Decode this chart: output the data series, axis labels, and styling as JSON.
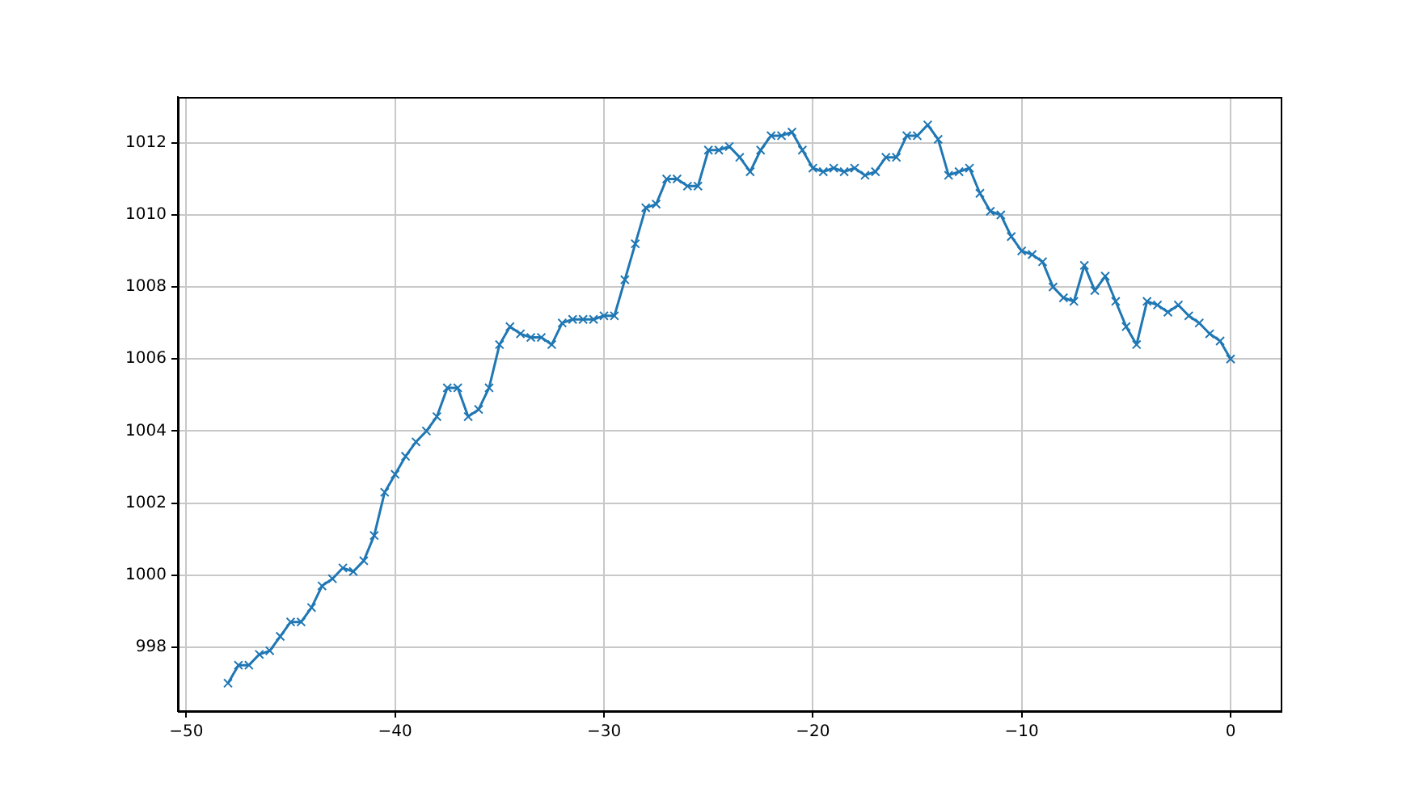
{
  "chart_data": {
    "type": "line",
    "x": [
      -48,
      -47.5,
      -47,
      -46.5,
      -46,
      -45.5,
      -45,
      -44.5,
      -44,
      -43.5,
      -43,
      -42.5,
      -42,
      -41.5,
      -41,
      -40.5,
      -40,
      -39.5,
      -39,
      -38.5,
      -38,
      -37.5,
      -37,
      -36.5,
      -36,
      -35.5,
      -35,
      -34.5,
      -34,
      -33.5,
      -33,
      -32.5,
      -32,
      -31.5,
      -31,
      -30.5,
      -30,
      -29.5,
      -29,
      -28.5,
      -28,
      -27.5,
      -27,
      -26.5,
      -26,
      -25.5,
      -25,
      -24.5,
      -24,
      -23.5,
      -23,
      -22.5,
      -22,
      -21.5,
      -21,
      -20.5,
      -20,
      -19.5,
      -19,
      -18.5,
      -18,
      -17.5,
      -17,
      -16.5,
      -16,
      -15.5,
      -15,
      -14.5,
      -14,
      -13.5,
      -13,
      -12.5,
      -12,
      -11.5,
      -11,
      -10.5,
      -10,
      -9.5,
      -9,
      -8.5,
      -8,
      -7.5,
      -7,
      -6.5,
      -6,
      -5.5,
      -5,
      -4.5,
      -4,
      -3.5,
      -3,
      -2.5,
      -2,
      -1.5,
      -1,
      -0.5,
      0
    ],
    "series": [
      {
        "color": "#1f77b4",
        "values": [
          997.0,
          997.5,
          997.5,
          997.8,
          997.9,
          998.3,
          998.7,
          998.7,
          999.1,
          999.7,
          999.9,
          1000.2,
          1000.1,
          1000.4,
          1001.1,
          1002.3,
          1002.8,
          1003.3,
          1003.7,
          1004.0,
          1004.4,
          1005.2,
          1005.2,
          1004.4,
          1004.6,
          1005.2,
          1006.4,
          1006.9,
          1006.7,
          1006.6,
          1006.6,
          1006.4,
          1007.0,
          1007.1,
          1007.1,
          1007.1,
          1007.2,
          1007.2,
          1008.2,
          1009.2,
          1010.2,
          1010.3,
          1011.0,
          1011.0,
          1010.8,
          1010.8,
          1011.8,
          1011.8,
          1011.9,
          1011.6,
          1011.2,
          1011.8,
          1012.2,
          1012.2,
          1012.3,
          1011.8,
          1011.3,
          1011.2,
          1011.3,
          1011.2,
          1011.3,
          1011.1,
          1011.2,
          1011.6,
          1011.6,
          1012.2,
          1012.2,
          1012.5,
          1012.1,
          1011.1,
          1011.2,
          1011.3,
          1010.6,
          1010.1,
          1010.0,
          1009.4,
          1009.0,
          1008.9,
          1008.7,
          1008.0,
          1007.7,
          1007.6,
          1008.6,
          1007.9,
          1008.3,
          1007.6,
          1006.9,
          1006.4,
          1007.6,
          1007.5,
          1007.3,
          1007.5,
          1007.2,
          1007.0,
          1006.7,
          1006.5,
          1006.0
        ]
      }
    ],
    "xlim": [
      -50.4,
      2.4
    ],
    "xticks": [
      {
        "value": -50,
        "label": "−50"
      },
      {
        "value": -40,
        "label": "−40"
      },
      {
        "value": -30,
        "label": "−30"
      },
      {
        "value": -20,
        "label": "−20"
      },
      {
        "value": -10,
        "label": "−10"
      },
      0
    ],
    "ylim": [
      996.225,
      1013.275
    ],
    "yticks": [
      998,
      1000,
      1002,
      1004,
      1006,
      1008,
      1010,
      1012
    ],
    "grid": true,
    "marker": "cross",
    "line_style": "solid"
  }
}
